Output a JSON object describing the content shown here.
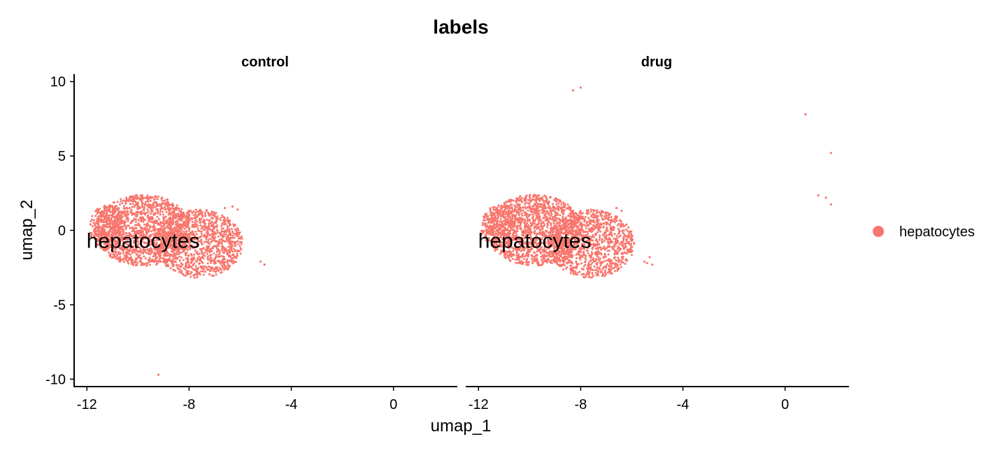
{
  "chart_data": {
    "type": "scatter",
    "title": "labels",
    "xlabel": "umap_1",
    "ylabel": "umap_2",
    "xlim": [
      -12.5,
      2.5
    ],
    "ylim": [
      -10.5,
      10.5
    ],
    "xticks": [
      -12,
      -8,
      -4,
      0
    ],
    "xtick_labels": [
      "-12",
      "-8",
      "-4",
      "0"
    ],
    "yticks": [
      10,
      5,
      0,
      -5,
      -10
    ],
    "ytick_labels": [
      "10",
      "5",
      "0",
      "-5",
      "-10"
    ],
    "grid": false,
    "legend_position": "right",
    "series": [
      {
        "name": "hepatocytes",
        "color": "#F8766D"
      }
    ],
    "facets": [
      {
        "name": "control",
        "cluster_label": "hepatocytes",
        "cluster_label_pos": [
          -9.8,
          -0.8
        ],
        "clusters": [
          {
            "center": [
              -9.8,
              0.0
            ],
            "rx": 1.9,
            "ry": 2.4,
            "n": 1500
          },
          {
            "center": [
              -7.6,
              -0.9
            ],
            "rx": 1.7,
            "ry": 2.3,
            "n": 1100
          },
          {
            "center": [
              -11.2,
              0.2
            ],
            "rx": 0.7,
            "ry": 1.5,
            "n": 250
          }
        ],
        "outliers": [
          [
            -9.2,
            -9.7
          ],
          [
            -5.2,
            -2.1
          ],
          [
            -5.05,
            -2.3
          ],
          [
            -6.3,
            1.6
          ],
          [
            -6.1,
            1.4
          ],
          [
            -6.6,
            1.5
          ]
        ]
      },
      {
        "name": "drug",
        "cluster_label": "hepatocytes",
        "cluster_label_pos": [
          -9.8,
          -0.8
        ],
        "clusters": [
          {
            "center": [
              -9.8,
              0.0
            ],
            "rx": 1.9,
            "ry": 2.4,
            "n": 1500
          },
          {
            "center": [
              -7.6,
              -0.9
            ],
            "rx": 1.7,
            "ry": 2.3,
            "n": 1100
          },
          {
            "center": [
              -11.2,
              0.2
            ],
            "rx": 0.7,
            "ry": 1.5,
            "n": 250
          }
        ],
        "outliers": [
          [
            -8.3,
            9.4
          ],
          [
            -8.0,
            9.6
          ],
          [
            0.8,
            7.8
          ],
          [
            1.8,
            5.2
          ],
          [
            1.3,
            2.35
          ],
          [
            1.6,
            2.2
          ],
          [
            1.8,
            1.75
          ],
          [
            -5.3,
            -1.8
          ],
          [
            -5.4,
            -2.2
          ],
          [
            -5.2,
            -2.3
          ],
          [
            -5.5,
            -2.1
          ],
          [
            -6.6,
            1.5
          ],
          [
            -6.4,
            1.3
          ]
        ]
      }
    ]
  }
}
